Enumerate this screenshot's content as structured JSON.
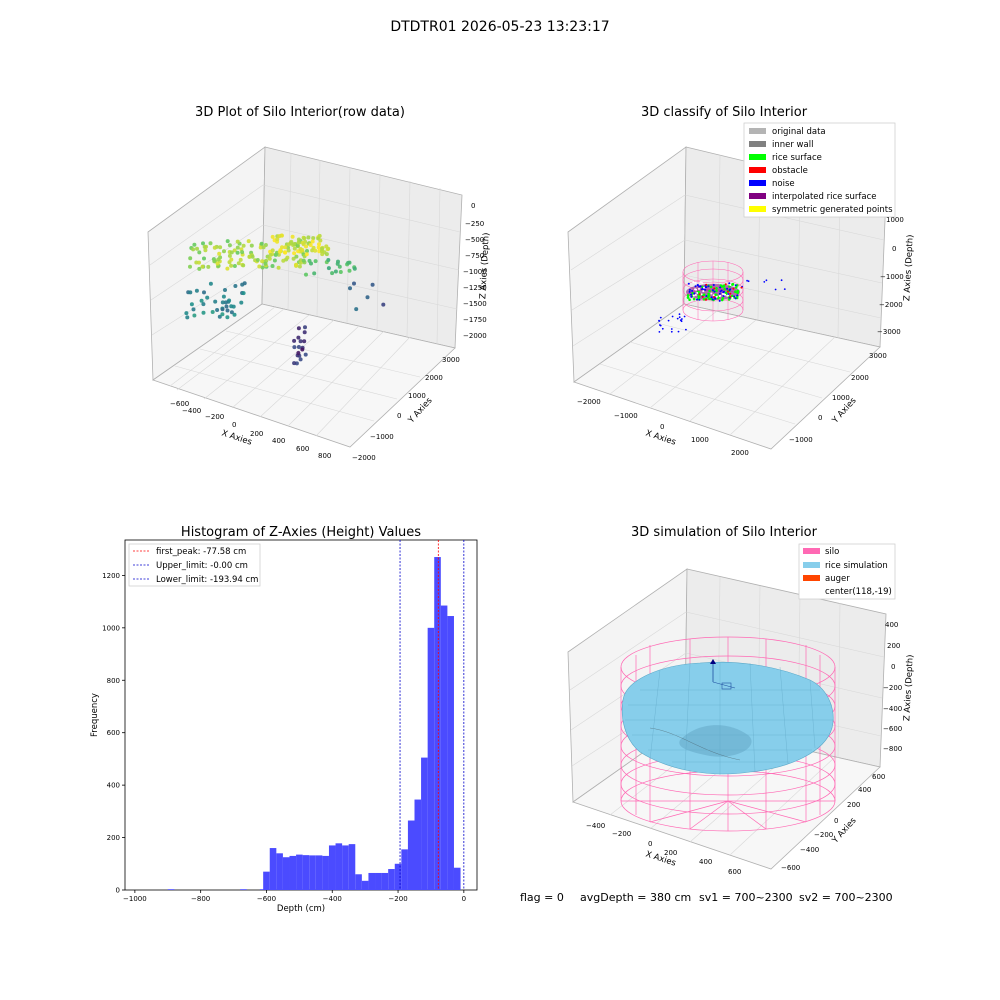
{
  "suptitle": "DTDTR01 2026-05-23 13:23:17",
  "panel1": {
    "title": "3D Plot of Silo Interior(row data)",
    "xlabel": "X Axies",
    "ylabel": "Y Axies",
    "zlabel": "Z Axies (Depth)",
    "xticks": [
      "−600",
      "−400",
      "−200",
      "0",
      "200",
      "400",
      "600",
      "800"
    ],
    "yticks": [
      "−2000",
      "−1000",
      "0",
      "1000",
      "2000",
      "3000"
    ],
    "zticks": [
      "0",
      "−250",
      "−500",
      "−750",
      "−1000",
      "−1250",
      "−1500",
      "−1750",
      "−2000"
    ]
  },
  "panel2": {
    "title": "3D classify of Silo Interior",
    "xlabel": "X Axies",
    "ylabel": "Y Axies",
    "zlabel": "Z Axies (Depth)",
    "xticks": [
      "−2000",
      "−1000",
      "0",
      "1000",
      "2000"
    ],
    "yticks": [
      "−1000",
      "0",
      "1000",
      "2000",
      "3000"
    ],
    "zticks": [
      "1000",
      "0",
      "−1000",
      "−2000",
      "−3000"
    ],
    "legend": [
      {
        "label": "original data",
        "color": "#b4b4b4"
      },
      {
        "label": "inner wall",
        "color": "#808080"
      },
      {
        "label": "rice surface",
        "color": "#00ff00"
      },
      {
        "label": "obstacle",
        "color": "#ff0000"
      },
      {
        "label": "noise",
        "color": "#0000ff"
      },
      {
        "label": "interpolated rice surface",
        "color": "#800080"
      },
      {
        "label": "symmetric generated points",
        "color": "#ffff00"
      }
    ]
  },
  "panel3": {
    "title": "Histogram of Z-Axies (Height) Values",
    "legend": [
      {
        "label": "first_peak: -77.58 cm",
        "color": "#ff0000"
      },
      {
        "label": "Upper_limit: -0.00 cm",
        "color": "#0000cc"
      },
      {
        "label": "Lower_limit: -193.94 cm",
        "color": "#0000cc"
      }
    ]
  },
  "panel4": {
    "title": "3D simulation of Silo Interior",
    "xlabel": "X Axies",
    "ylabel": "Y Axies",
    "zlabel": "Z Axies (Depth)",
    "xticks": [
      "−400",
      "−200",
      "0",
      "200",
      "400",
      "600"
    ],
    "yticks": [
      "−600",
      "−400",
      "−200",
      "0",
      "200",
      "400",
      "600"
    ],
    "zticks": [
      "400",
      "200",
      "0",
      "−200",
      "−400",
      "−600",
      "−800"
    ],
    "legend": [
      {
        "label": "silo",
        "color": "#ff69b4"
      },
      {
        "label": "rice simulation",
        "color": "#87ceeb"
      },
      {
        "label": "auger",
        "color": "#ff4500"
      },
      {
        "label": "center(118,-19)",
        "color": ""
      }
    ]
  },
  "status": {
    "flag": "flag = 0",
    "avg_depth": "avgDepth = 380 cm",
    "sv1": "sv1 = 700~2300",
    "sv2": "sv2 = 700~2300"
  },
  "colors": {
    "hist_bar": "#4b4bff",
    "first_peak": "#ff0000",
    "limits": "#0000cc",
    "silo_wire": "#ff69b4",
    "rice": "#87ceeb",
    "noise": "#0000ff"
  },
  "chart_data": [
    {
      "type": "histogram",
      "title": "Histogram of Z-Axies (Height) Values",
      "xlabel": "Depth (cm)",
      "ylabel": "Frequency",
      "xlim": [
        -1030,
        40
      ],
      "ylim": [
        0,
        1335
      ],
      "xticks": [
        -1000,
        -800,
        -600,
        -400,
        -200,
        0
      ],
      "yticks": [
        0,
        200,
        400,
        600,
        800,
        1000,
        1200
      ],
      "bin_width": 20,
      "bins": [
        {
          "x0": -900,
          "count": 3
        },
        {
          "x0": -680,
          "count": 3
        },
        {
          "x0": -620,
          "count": 3
        },
        {
          "x0": -610,
          "count": 70
        },
        {
          "x0": -590,
          "count": 160
        },
        {
          "x0": -570,
          "count": 140
        },
        {
          "x0": -550,
          "count": 125
        },
        {
          "x0": -530,
          "count": 130
        },
        {
          "x0": -510,
          "count": 135
        },
        {
          "x0": -490,
          "count": 133
        },
        {
          "x0": -470,
          "count": 132
        },
        {
          "x0": -450,
          "count": 132
        },
        {
          "x0": -430,
          "count": 130
        },
        {
          "x0": -410,
          "count": 170
        },
        {
          "x0": -390,
          "count": 178
        },
        {
          "x0": -370,
          "count": 170
        },
        {
          "x0": -350,
          "count": 175
        },
        {
          "x0": -330,
          "count": 60
        },
        {
          "x0": -310,
          "count": 35
        },
        {
          "x0": -290,
          "count": 65
        },
        {
          "x0": -270,
          "count": 65
        },
        {
          "x0": -250,
          "count": 65
        },
        {
          "x0": -230,
          "count": 80
        },
        {
          "x0": -210,
          "count": 100
        },
        {
          "x0": -190,
          "count": 155
        },
        {
          "x0": -170,
          "count": 265
        },
        {
          "x0": -150,
          "count": 345
        },
        {
          "x0": -130,
          "count": 505
        },
        {
          "x0": -110,
          "count": 1000
        },
        {
          "x0": -90,
          "count": 1270
        },
        {
          "x0": -70,
          "count": 1085
        },
        {
          "x0": -50,
          "count": 1045
        },
        {
          "x0": -30,
          "count": 85
        }
      ],
      "vlines": [
        {
          "name": "first_peak",
          "x": -77.58
        },
        {
          "name": "Upper_limit",
          "x": 0
        },
        {
          "name": "Lower_limit",
          "x": -193.94
        }
      ]
    }
  ]
}
